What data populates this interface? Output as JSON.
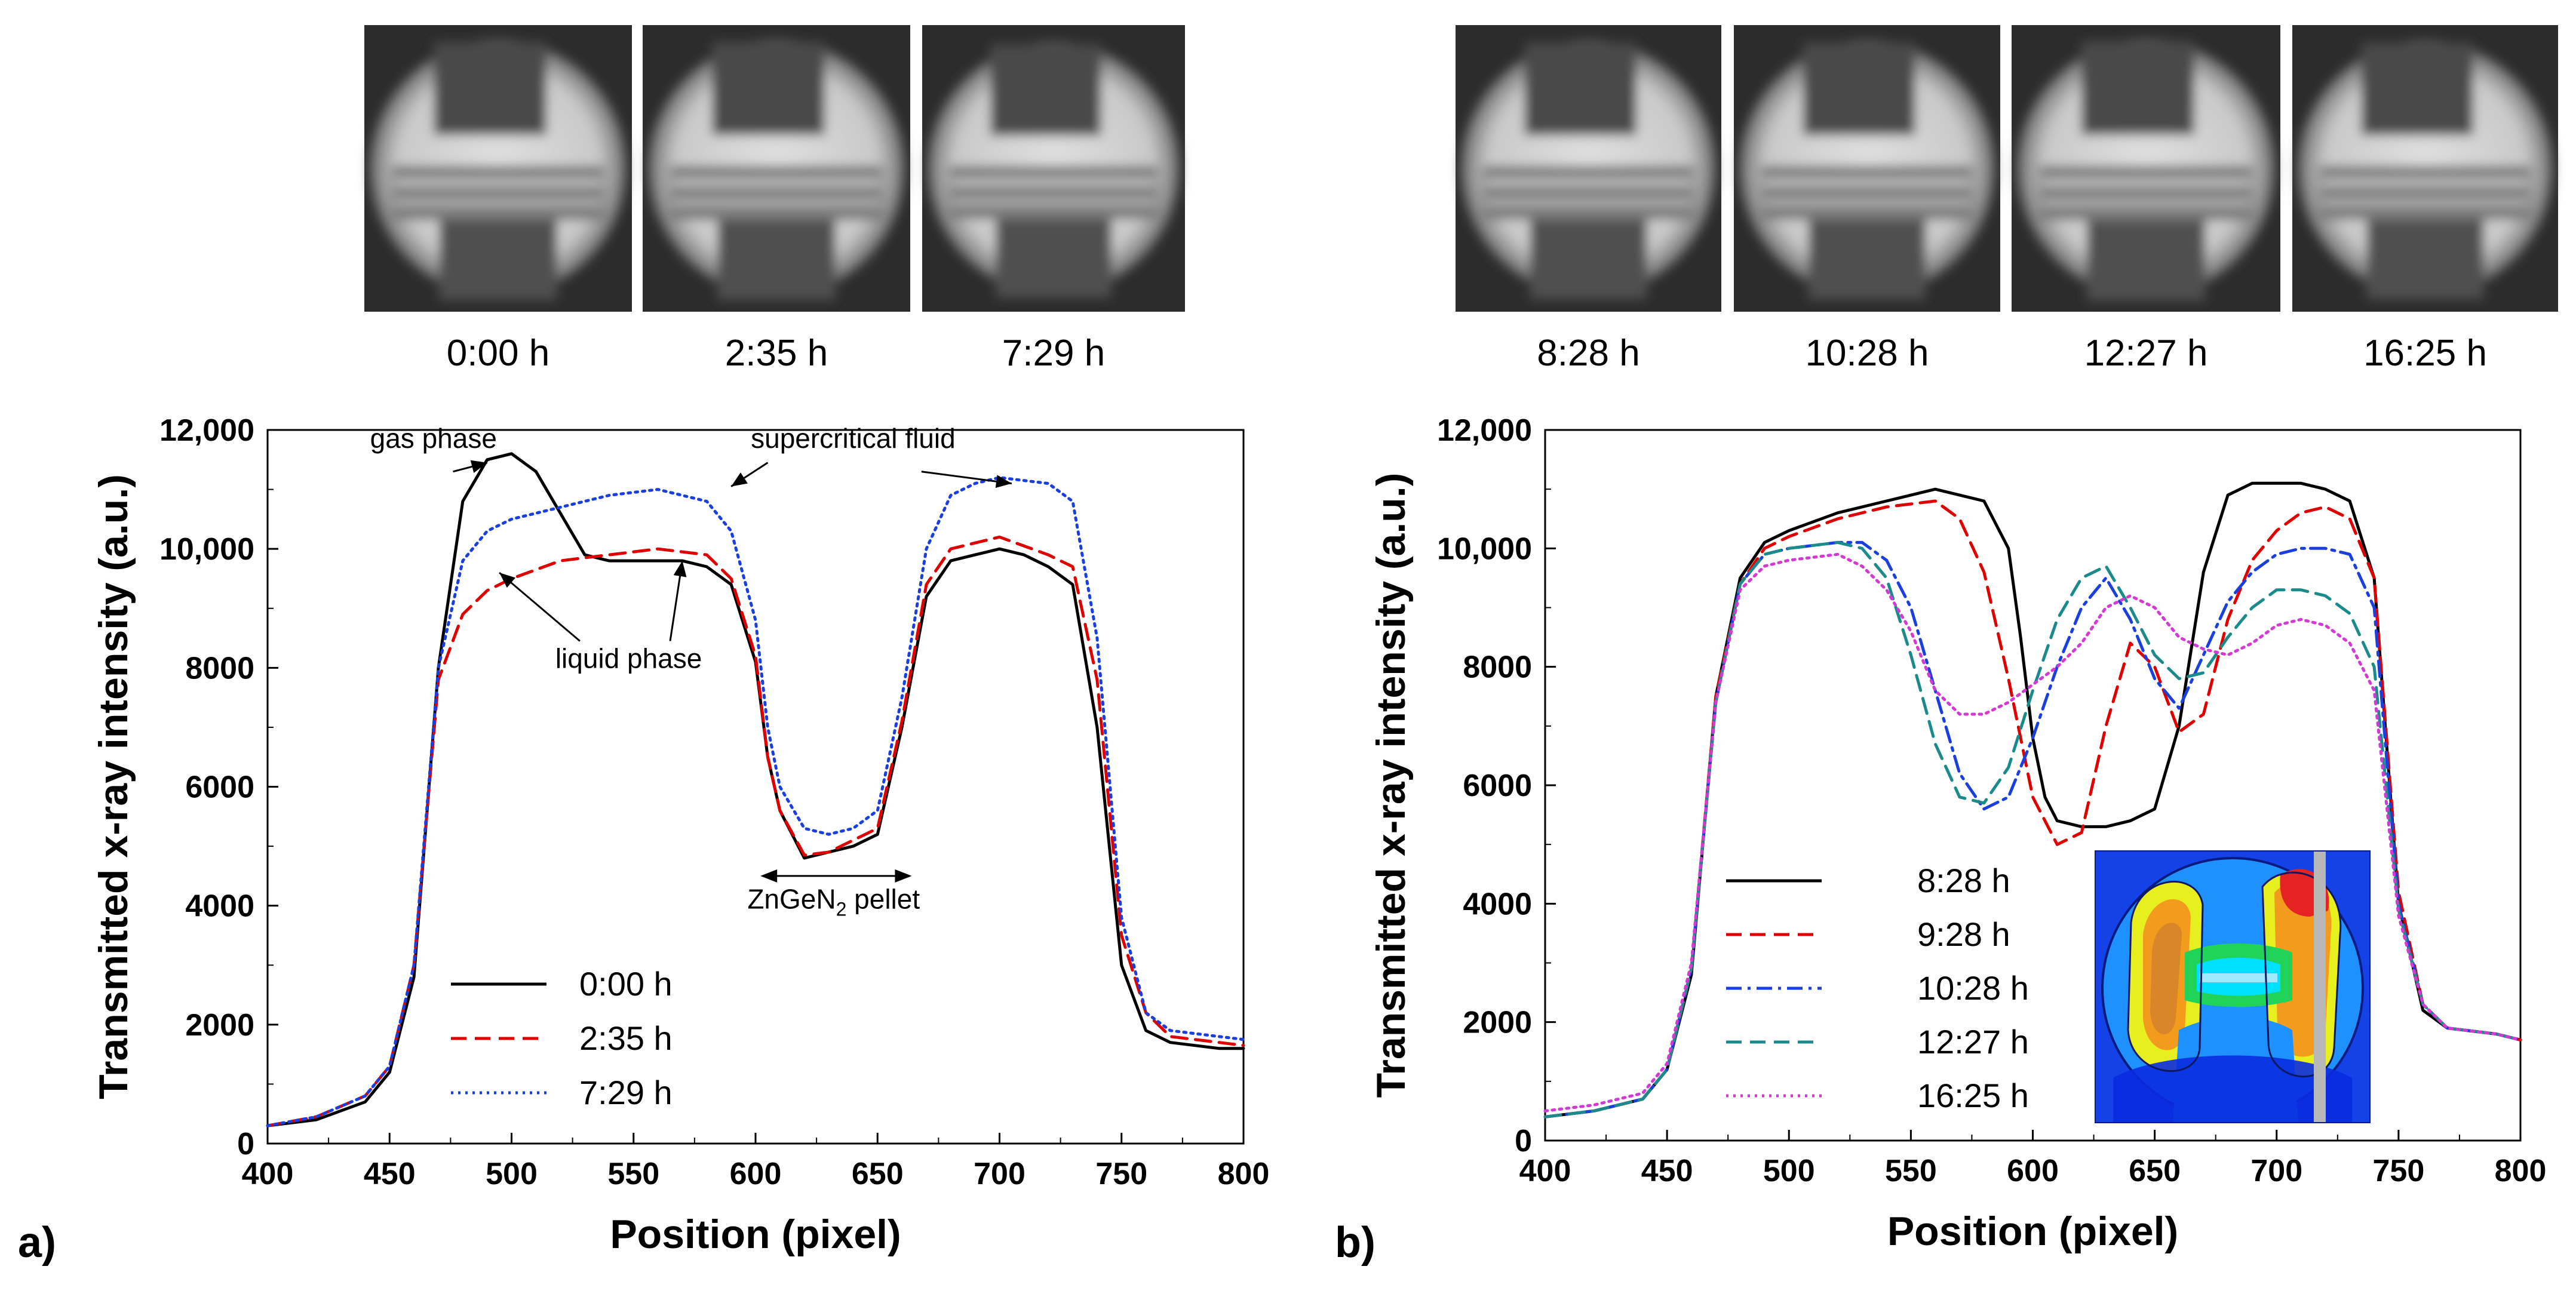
{
  "panels": [
    {
      "letter": "a)",
      "photos": [
        "0:00 h",
        "2:35 h",
        "7:29 h"
      ],
      "chart_data": {
        "type": "line",
        "xlabel": "Position (pixel)",
        "ylabel": "Transmitted x-ray intensity (a.u.)",
        "xlim": [
          400,
          800
        ],
        "ylim": [
          0,
          12000
        ],
        "xticks": [
          400,
          450,
          500,
          550,
          600,
          650,
          700,
          750,
          800
        ],
        "yticks": [
          0,
          2000,
          4000,
          6000,
          8000,
          10000,
          12000
        ],
        "ytick_labels": [
          "0",
          "2000",
          "4000",
          "6000",
          "8000",
          "10,000",
          "12,000"
        ],
        "legend_position": "bottom-left",
        "series": [
          {
            "name": "0:00 h",
            "color": "#000000",
            "style": "solid",
            "x": [
              400,
              420,
              440,
              450,
              460,
              470,
              480,
              490,
              500,
              510,
              520,
              530,
              540,
              550,
              560,
              570,
              580,
              590,
              600,
              605,
              610,
              620,
              630,
              640,
              650,
              660,
              670,
              680,
              690,
              700,
              710,
              720,
              730,
              740,
              750,
              760,
              770,
              780,
              790,
              800
            ],
            "y": [
              300,
              400,
              700,
              1200,
              2800,
              8000,
              10800,
              11500,
              11600,
              11300,
              10600,
              9900,
              9800,
              9800,
              9800,
              9800,
              9700,
              9400,
              8100,
              6500,
              5600,
              4800,
              4900,
              5000,
              5200,
              7000,
              9200,
              9800,
              9900,
              10000,
              9900,
              9700,
              9400,
              7000,
              3000,
              1900,
              1700,
              1650,
              1600,
              1600
            ]
          },
          {
            "name": "2:35 h",
            "color": "#e00000",
            "style": "dashed",
            "x": [
              400,
              420,
              440,
              450,
              460,
              470,
              480,
              490,
              500,
              520,
              540,
              560,
              580,
              590,
              600,
              605,
              610,
              620,
              630,
              640,
              650,
              660,
              670,
              680,
              690,
              700,
              720,
              730,
              740,
              750,
              760,
              770,
              790,
              800
            ],
            "y": [
              300,
              450,
              800,
              1300,
              3000,
              7800,
              8900,
              9300,
              9500,
              9800,
              9900,
              10000,
              9900,
              9500,
              8200,
              6500,
              5600,
              4850,
              4900,
              5100,
              5300,
              7100,
              9400,
              10000,
              10100,
              10200,
              9900,
              9700,
              7800,
              3500,
              2200,
              1800,
              1700,
              1650
            ]
          },
          {
            "name": "7:29 h",
            "color": "#1a3fe0",
            "style": "dotted",
            "x": [
              400,
              420,
              440,
              450,
              460,
              470,
              480,
              490,
              500,
              520,
              540,
              560,
              580,
              590,
              600,
              605,
              610,
              620,
              630,
              640,
              650,
              660,
              670,
              680,
              690,
              700,
              720,
              730,
              740,
              750,
              760,
              770,
              790,
              800
            ],
            "y": [
              300,
              450,
              800,
              1300,
              3000,
              8000,
              9800,
              10300,
              10500,
              10700,
              10900,
              11000,
              10800,
              10300,
              8800,
              7000,
              6000,
              5300,
              5200,
              5300,
              5600,
              7500,
              10000,
              10900,
              11100,
              11200,
              11100,
              10800,
              8500,
              3800,
              2200,
              1900,
              1800,
              1750
            ]
          }
        ],
        "annotations": [
          {
            "text": "gas phase",
            "x": 468,
            "y": 11700
          },
          {
            "text": "supercritical fluid",
            "x": 640,
            "y": 11700
          },
          {
            "text": "liquid phase",
            "x": 548,
            "y": 8000
          },
          {
            "text": "ZnGeN",
            "sub": "2",
            "rest": " pellet",
            "x": 632,
            "y": 3950
          }
        ]
      }
    },
    {
      "letter": "b)",
      "photos": [
        "8:28 h",
        "10:28 h",
        "12:27 h",
        "16:25 h"
      ],
      "chart_data": {
        "type": "line",
        "xlabel": "Position (pixel)",
        "ylabel": "Transmitted x-ray intensity (a.u.)",
        "xlim": [
          400,
          800
        ],
        "ylim": [
          0,
          12000
        ],
        "xticks": [
          400,
          450,
          500,
          550,
          600,
          650,
          700,
          750,
          800
        ],
        "yticks": [
          0,
          2000,
          4000,
          6000,
          8000,
          10000,
          12000
        ],
        "ytick_labels": [
          "0",
          "2000",
          "4000",
          "6000",
          "8000",
          "10,000",
          "12,000"
        ],
        "legend_position": "bottom-left",
        "series": [
          {
            "name": "8:28 h",
            "color": "#000000",
            "style": "solid",
            "x": [
              400,
              420,
              440,
              450,
              460,
              470,
              480,
              490,
              500,
              520,
              540,
              560,
              580,
              590,
              595,
              600,
              605,
              610,
              620,
              630,
              640,
              650,
              660,
              670,
              680,
              690,
              700,
              710,
              720,
              730,
              740,
              750,
              760,
              770,
              790,
              800
            ],
            "y": [
              400,
              500,
              700,
              1200,
              2800,
              7500,
              9500,
              10100,
              10300,
              10600,
              10800,
              11000,
              10800,
              10000,
              8500,
              6800,
              5800,
              5400,
              5300,
              5300,
              5400,
              5600,
              7000,
              9600,
              10900,
              11100,
              11100,
              11100,
              11000,
              10800,
              9500,
              4000,
              2200,
              1900,
              1800,
              1700
            ]
          },
          {
            "name": "9:28 h",
            "color": "#e00000",
            "style": "dashed",
            "x": [
              400,
              420,
              440,
              450,
              460,
              470,
              480,
              490,
              500,
              520,
              540,
              560,
              570,
              580,
              590,
              600,
              610,
              620,
              630,
              640,
              650,
              660,
              670,
              680,
              690,
              700,
              710,
              720,
              730,
              740,
              750,
              760,
              770,
              790,
              800
            ],
            "y": [
              400,
              500,
              700,
              1200,
              2900,
              7500,
              9400,
              10000,
              10200,
              10500,
              10700,
              10800,
              10500,
              9600,
              7800,
              5800,
              5000,
              5200,
              7000,
              8400,
              8000,
              6900,
              7200,
              8800,
              9800,
              10300,
              10600,
              10700,
              10500,
              9500,
              4200,
              2300,
              1900,
              1800,
              1700
            ]
          },
          {
            "name": "10:28 h",
            "color": "#1a3fe0",
            "style": "dashdot",
            "x": [
              400,
              420,
              440,
              450,
              460,
              470,
              480,
              490,
              500,
              520,
              530,
              540,
              550,
              560,
              570,
              580,
              590,
              600,
              610,
              620,
              630,
              640,
              650,
              660,
              670,
              680,
              690,
              700,
              710,
              720,
              730,
              740,
              750,
              760,
              770,
              790,
              800
            ],
            "y": [
              400,
              500,
              700,
              1200,
              2900,
              7400,
              9400,
              9900,
              10000,
              10100,
              10100,
              9800,
              9000,
              7600,
              6200,
              5600,
              5800,
              6800,
              8000,
              9000,
              9500,
              8800,
              7800,
              7300,
              8200,
              9100,
              9600,
              9900,
              10000,
              10000,
              9900,
              9000,
              4000,
              2300,
              1900,
              1800,
              1700
            ]
          },
          {
            "name": "12:27 h",
            "color": "#1b8a8a",
            "style": "dashed",
            "x": [
              400,
              420,
              440,
              450,
              460,
              470,
              480,
              490,
              500,
              520,
              530,
              540,
              550,
              560,
              570,
              580,
              590,
              600,
              610,
              620,
              630,
              640,
              650,
              660,
              670,
              680,
              690,
              700,
              710,
              720,
              730,
              740,
              750,
              760,
              770,
              790,
              800
            ],
            "y": [
              400,
              500,
              700,
              1200,
              2900,
              7400,
              9400,
              9900,
              10000,
              10100,
              10000,
              9500,
              8200,
              6700,
              5800,
              5700,
              6300,
              7600,
              8800,
              9500,
              9700,
              9000,
              8200,
              7800,
              7900,
              8500,
              9000,
              9300,
              9300,
              9200,
              8900,
              8000,
              3900,
              2300,
              1900,
              1800,
              1700
            ]
          },
          {
            "name": "16:25 h",
            "color": "#d33ad3",
            "style": "dotted",
            "x": [
              400,
              420,
              440,
              450,
              460,
              470,
              480,
              490,
              500,
              520,
              530,
              540,
              550,
              560,
              570,
              580,
              590,
              600,
              610,
              620,
              630,
              640,
              650,
              660,
              670,
              680,
              690,
              700,
              710,
              720,
              730,
              740,
              750,
              760,
              770,
              790,
              800
            ],
            "y": [
              500,
              600,
              800,
              1300,
              3000,
              7400,
              9300,
              9700,
              9800,
              9900,
              9700,
              9300,
              8600,
              7600,
              7200,
              7200,
              7400,
              7700,
              8000,
              8400,
              9000,
              9200,
              9000,
              8500,
              8300,
              8200,
              8400,
              8700,
              8800,
              8700,
              8400,
              7600,
              3800,
              2300,
              1900,
              1800,
              1700
            ]
          }
        ]
      }
    }
  ],
  "inset": {
    "colors": [
      "#0a2be0",
      "#1e90ff",
      "#00e0ff",
      "#22d35a",
      "#e8ef1e",
      "#f29b1c",
      "#e52323"
    ]
  }
}
